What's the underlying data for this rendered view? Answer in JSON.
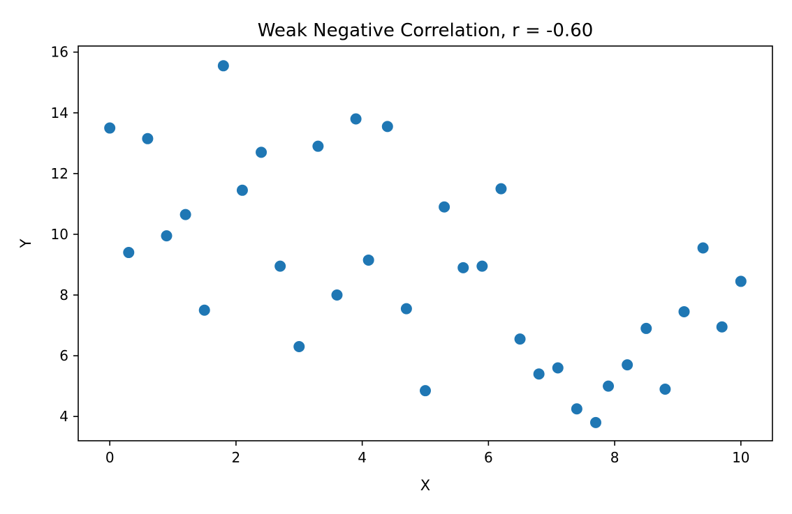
{
  "chart_data": {
    "type": "scatter",
    "title": "Weak Negative Correlation, r = -0.60",
    "xlabel": "X",
    "ylabel": "Y",
    "xlim": [
      -0.5,
      10.5
    ],
    "ylim": [
      3.2,
      16.2
    ],
    "xticks": [
      0,
      2,
      4,
      6,
      8,
      10
    ],
    "yticks": [
      4,
      6,
      8,
      10,
      12,
      14,
      16
    ],
    "grid": false,
    "legend": "none",
    "marker_color": "#1f77b4",
    "x": [
      0.0,
      0.3,
      0.6,
      0.9,
      1.2,
      1.5,
      1.8,
      2.1,
      2.4,
      2.7,
      3.0,
      3.3,
      3.6,
      3.9,
      4.1,
      4.4,
      4.7,
      5.0,
      5.3,
      5.6,
      5.9,
      6.2,
      6.5,
      6.8,
      7.1,
      7.4,
      7.7,
      7.9,
      8.2,
      8.5,
      8.8,
      9.1,
      9.4,
      9.7,
      10.0
    ],
    "y": [
      13.5,
      9.4,
      13.15,
      9.95,
      10.65,
      7.5,
      15.55,
      11.45,
      12.7,
      8.95,
      6.3,
      12.9,
      8.0,
      13.8,
      9.15,
      13.55,
      7.55,
      4.85,
      10.9,
      8.9,
      8.95,
      11.5,
      6.55,
      5.4,
      5.6,
      4.25,
      3.8,
      5.0,
      5.7,
      6.9,
      4.9,
      7.45,
      9.55,
      6.95,
      8.45
    ]
  }
}
